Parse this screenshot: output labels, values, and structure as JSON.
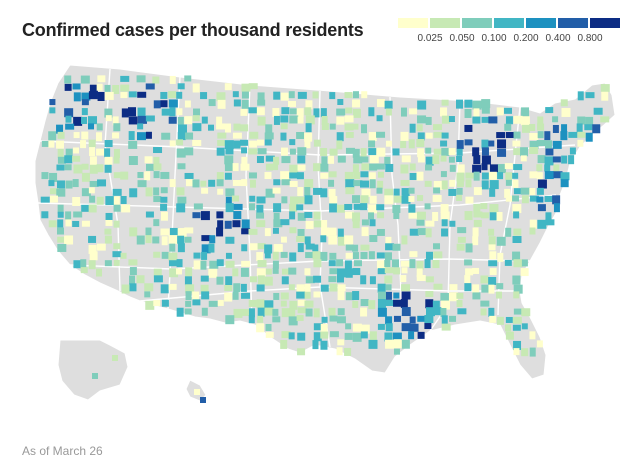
{
  "title": "Confirmed cases per thousand residents",
  "footnote": "As of March 26",
  "legend": {
    "labels": [
      "0.025",
      "0.050",
      "0.100",
      "0.200",
      "0.400",
      "0.800"
    ],
    "colors": [
      "#ffffcc",
      "#c7e9b4",
      "#7fcdbb",
      "#41b6c4",
      "#1d91c0",
      "#225ea8",
      "#0c2c84"
    ]
  },
  "map": {
    "background_color": "#dedede",
    "boundary_color": "#ffffff",
    "no_data_color": "#dedede"
  }
}
